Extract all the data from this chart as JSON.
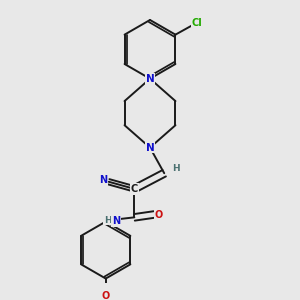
{
  "bg_color": "#e8e8e8",
  "bond_color": "#1a1a1a",
  "bond_width": 1.4,
  "atom_colors": {
    "N": "#1010cc",
    "O": "#cc1010",
    "Cl": "#22aa00",
    "C": "#1a1a1a",
    "H": "#4a7070"
  },
  "font_size_atom": 7.5,
  "font_size_small": 6.5,
  "font_size_cl": 7.0
}
